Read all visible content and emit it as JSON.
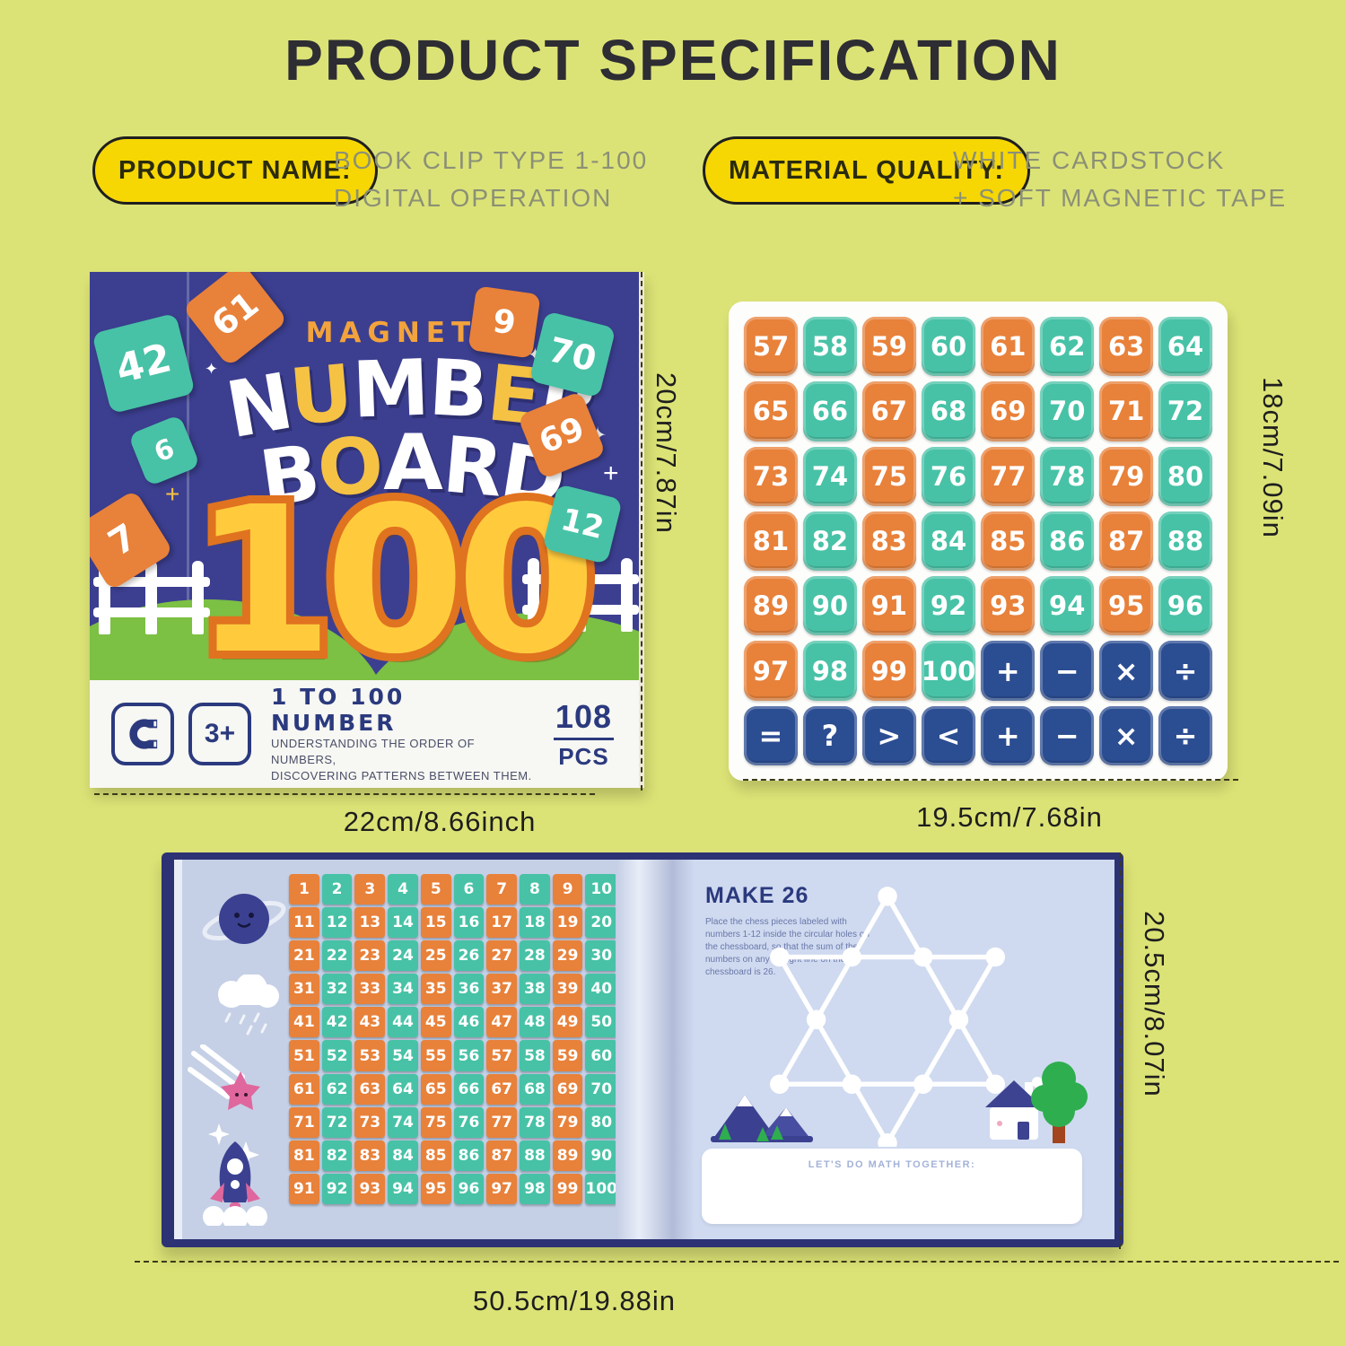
{
  "page": {
    "title": "PRODUCT SPECIFICATION"
  },
  "specs": [
    {
      "label": "PRODUCT NAME:",
      "value": "BOOK CLIP TYPE 1-100\nDIGITAL OPERATION"
    },
    {
      "label": "MATERIAL QUALITY:",
      "value": "WHITE CARDSTOCK\n+ SOFT MAGNETIC TAPE"
    }
  ],
  "box_cover": {
    "brand_line": "MAGNETIC",
    "title_word1_letters": [
      {
        "ch": "N",
        "c": "w"
      },
      {
        "ch": "U",
        "c": "y"
      },
      {
        "ch": "M",
        "c": "w"
      },
      {
        "ch": "B",
        "c": "w"
      },
      {
        "ch": "E",
        "c": "y"
      },
      {
        "ch": "R",
        "c": "w"
      }
    ],
    "title_word2_letters": [
      {
        "ch": "B",
        "c": "w"
      },
      {
        "ch": "O",
        "c": "y"
      },
      {
        "ch": "A",
        "c": "w"
      },
      {
        "ch": "R",
        "c": "w"
      },
      {
        "ch": "D",
        "c": "w"
      }
    ],
    "big_number": "100",
    "scattered_tiles": [
      {
        "v": "61",
        "c": "o"
      },
      {
        "v": "42",
        "c": "t"
      },
      {
        "v": "6",
        "c": "t"
      },
      {
        "v": "7",
        "c": "o"
      },
      {
        "v": "9",
        "c": "o"
      },
      {
        "v": "70",
        "c": "t"
      },
      {
        "v": "69",
        "c": "o"
      },
      {
        "v": "12",
        "c": "t"
      }
    ],
    "age_badge": "3+",
    "feature_title": "1 TO 100 NUMBER",
    "feature_desc_line1": "UNDERSTANDING THE ORDER OF NUMBERS,",
    "feature_desc_line2": "DISCOVERING PATTERNS BETWEEN THEM.",
    "pieces_count": "108",
    "pieces_unit": "PCS"
  },
  "board": {
    "rows": [
      [
        {
          "v": "57",
          "c": "o"
        },
        {
          "v": "58",
          "c": "t"
        },
        {
          "v": "59",
          "c": "o"
        },
        {
          "v": "60",
          "c": "t"
        },
        {
          "v": "61",
          "c": "o"
        },
        {
          "v": "62",
          "c": "t"
        },
        {
          "v": "63",
          "c": "o"
        },
        {
          "v": "64",
          "c": "t"
        }
      ],
      [
        {
          "v": "65",
          "c": "o"
        },
        {
          "v": "66",
          "c": "t"
        },
        {
          "v": "67",
          "c": "o"
        },
        {
          "v": "68",
          "c": "t"
        },
        {
          "v": "69",
          "c": "o"
        },
        {
          "v": "70",
          "c": "t"
        },
        {
          "v": "71",
          "c": "o"
        },
        {
          "v": "72",
          "c": "t"
        }
      ],
      [
        {
          "v": "73",
          "c": "o"
        },
        {
          "v": "74",
          "c": "t"
        },
        {
          "v": "75",
          "c": "o"
        },
        {
          "v": "76",
          "c": "t"
        },
        {
          "v": "77",
          "c": "o"
        },
        {
          "v": "78",
          "c": "t"
        },
        {
          "v": "79",
          "c": "o"
        },
        {
          "v": "80",
          "c": "t"
        }
      ],
      [
        {
          "v": "81",
          "c": "o"
        },
        {
          "v": "82",
          "c": "t"
        },
        {
          "v": "83",
          "c": "o"
        },
        {
          "v": "84",
          "c": "t"
        },
        {
          "v": "85",
          "c": "o"
        },
        {
          "v": "86",
          "c": "t"
        },
        {
          "v": "87",
          "c": "o"
        },
        {
          "v": "88",
          "c": "t"
        }
      ],
      [
        {
          "v": "89",
          "c": "o"
        },
        {
          "v": "90",
          "c": "t"
        },
        {
          "v": "91",
          "c": "o"
        },
        {
          "v": "92",
          "c": "t"
        },
        {
          "v": "93",
          "c": "o"
        },
        {
          "v": "94",
          "c": "t"
        },
        {
          "v": "95",
          "c": "o"
        },
        {
          "v": "96",
          "c": "t"
        }
      ],
      [
        {
          "v": "97",
          "c": "o"
        },
        {
          "v": "98",
          "c": "t"
        },
        {
          "v": "99",
          "c": "o"
        },
        {
          "v": "100",
          "c": "t"
        },
        {
          "v": "+",
          "c": "n"
        },
        {
          "v": "−",
          "c": "n"
        },
        {
          "v": "×",
          "c": "n"
        },
        {
          "v": "÷",
          "c": "n"
        }
      ],
      [
        {
          "v": "=",
          "c": "n"
        },
        {
          "v": "?",
          "c": "n"
        },
        {
          "v": ">",
          "c": "n"
        },
        {
          "v": "<",
          "c": "n"
        },
        {
          "v": "+",
          "c": "n"
        },
        {
          "v": "−",
          "c": "n"
        },
        {
          "v": "×",
          "c": "n"
        },
        {
          "v": "÷",
          "c": "n"
        }
      ]
    ]
  },
  "book": {
    "numbers": [
      1,
      2,
      3,
      4,
      5,
      6,
      7,
      8,
      9,
      10,
      11,
      12,
      13,
      14,
      15,
      16,
      17,
      18,
      19,
      20,
      21,
      22,
      23,
      24,
      25,
      26,
      27,
      28,
      29,
      30,
      31,
      32,
      33,
      34,
      35,
      36,
      37,
      38,
      39,
      40,
      41,
      42,
      43,
      44,
      45,
      46,
      47,
      48,
      49,
      50,
      51,
      52,
      53,
      54,
      55,
      56,
      57,
      58,
      59,
      60,
      61,
      62,
      63,
      64,
      65,
      66,
      67,
      68,
      69,
      70,
      71,
      72,
      73,
      74,
      75,
      76,
      77,
      78,
      79,
      80,
      81,
      82,
      83,
      84,
      85,
      86,
      87,
      88,
      89,
      90,
      91,
      92,
      93,
      94,
      95,
      96,
      97,
      98,
      99,
      100
    ],
    "puzzle_title": "MAKE 26",
    "puzzle_desc": "Place the chess pieces labeled with numbers 1-12 inside the circular holes on the chessboard, so that the sum of the numbers on any straight line on the chessboard is 26.",
    "footer_note": "LET'S DO MATH TOGETHER:"
  },
  "dimensions": {
    "box_height": "20cm/7.87in",
    "box_width": "22cm/8.66inch",
    "board_height": "18cm/7.09in",
    "board_width": "19.5cm/7.68in",
    "book_height": "20.5cm/8.07in",
    "book_width": "50.5cm/19.88in"
  },
  "icons": {
    "sparkle": "✦",
    "plus_sparkle": "+"
  },
  "colors": {
    "background": "#dce376",
    "pill_yellow": "#f6d703",
    "cover_navy": "#3c3f90",
    "tile_orange": "#e8813a",
    "tile_teal": "#47c2a6",
    "tile_navy": "#2b4d92",
    "big_number_fill": "#ffcb3d",
    "big_number_stroke": "#e0731f",
    "hill_green": "#7cc044"
  }
}
